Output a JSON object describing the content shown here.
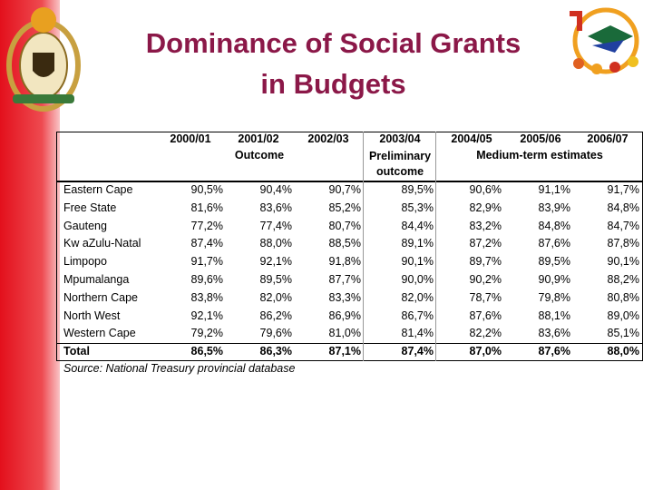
{
  "title": [
    "Dominance of Social Grants",
    "in Budgets"
  ],
  "table": {
    "columns": [
      "2000/01",
      "2001/02",
      "2002/03",
      "2003/04",
      "2004/05",
      "2005/06",
      "2006/07"
    ],
    "groups": [
      "Outcome",
      "Preliminary outcome",
      "Medium-term estimates"
    ],
    "rows": [
      [
        "Eastern Cape",
        "90,5%",
        "90,4%",
        "90,7%",
        "89,5%",
        "90,6%",
        "91,1%",
        "91,7%"
      ],
      [
        "Free State",
        "81,6%",
        "83,6%",
        "85,2%",
        "85,3%",
        "82,9%",
        "83,9%",
        "84,8%"
      ],
      [
        "Gauteng",
        "77,2%",
        "77,4%",
        "80,7%",
        "84,4%",
        "83,2%",
        "84,8%",
        "84,7%"
      ],
      [
        "Kw aZulu-Natal",
        "87,4%",
        "88,0%",
        "88,5%",
        "89,1%",
        "87,2%",
        "87,6%",
        "87,8%"
      ],
      [
        "Limpopo",
        "91,7%",
        "92,1%",
        "91,8%",
        "90,1%",
        "89,7%",
        "89,5%",
        "90,1%"
      ],
      [
        "Mpumalanga",
        "89,6%",
        "89,5%",
        "87,7%",
        "90,0%",
        "90,2%",
        "90,9%",
        "88,2%"
      ],
      [
        "Northern Cape",
        "83,8%",
        "82,0%",
        "83,3%",
        "82,0%",
        "78,7%",
        "79,8%",
        "80,8%"
      ],
      [
        "North West",
        "92,1%",
        "86,2%",
        "86,9%",
        "86,7%",
        "87,6%",
        "88,1%",
        "89,0%"
      ],
      [
        "Western Cape",
        "79,2%",
        "79,6%",
        "81,0%",
        "81,4%",
        "82,2%",
        "83,6%",
        "85,1%"
      ]
    ],
    "total": [
      "Total",
      "86,5%",
      "86,3%",
      "87,1%",
      "87,4%",
      "87,0%",
      "87,6%",
      "88,0%"
    ],
    "source": "Source: National Treasury provincial database"
  }
}
